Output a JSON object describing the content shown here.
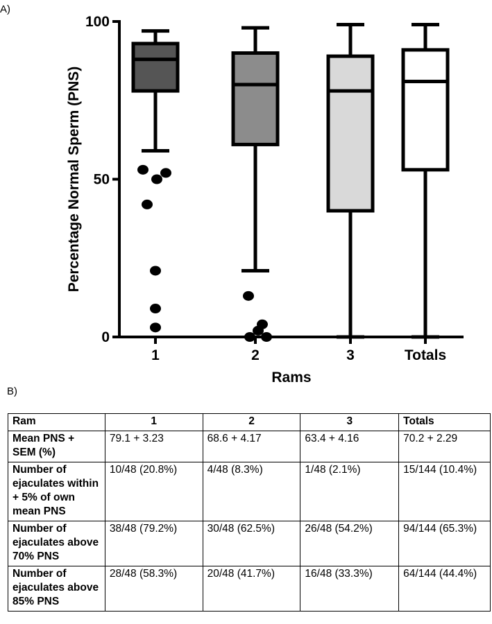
{
  "panel_a_label": "A)",
  "panel_b_label": "B)",
  "chart_data": {
    "type": "box",
    "title": "",
    "xlabel": "Rams",
    "ylabel": "Percentage Normal Sperm (PNS)",
    "ylim": [
      0,
      100
    ],
    "yticks": [
      0,
      50,
      100
    ],
    "categories": [
      "1",
      "2",
      "3",
      "Totals"
    ],
    "boxes": [
      {
        "name": "1",
        "whisker_low": 59,
        "q1": 78,
        "median": 88,
        "q3": 93,
        "whisker_high": 97,
        "fill": "#555555",
        "outliers": [
          53,
          50,
          52,
          42,
          21,
          9,
          3
        ]
      },
      {
        "name": "2",
        "whisker_low": 21,
        "q1": 61,
        "median": 80,
        "q3": 90,
        "whisker_high": 98,
        "fill": "#8c8c8c",
        "outliers": [
          13,
          0,
          2,
          4,
          0
        ]
      },
      {
        "name": "3",
        "whisker_low": 0,
        "q1": 40,
        "median": 78,
        "q3": 89,
        "whisker_high": 99,
        "fill": "#d9d9d9",
        "outliers": []
      },
      {
        "name": "Totals",
        "whisker_low": 0,
        "q1": 53,
        "median": 81,
        "q3": 91,
        "whisker_high": 99,
        "fill": "#ffffff",
        "outliers": []
      }
    ]
  },
  "table": {
    "header": [
      "Ram",
      "1",
      "2",
      "3",
      "Totals"
    ],
    "rows": [
      {
        "label": "Mean PNS + SEM (%)",
        "cells": [
          "79.1 + 3.23",
          "68.6 + 4.17",
          "63.4 + 4.16",
          "70.2 + 2.29"
        ]
      },
      {
        "label": "Number of ejaculates within + 5% of own mean PNS",
        "cells": [
          "10/48 (20.8%)",
          "4/48 (8.3%)",
          "1/48 (2.1%)",
          "15/144 (10.4%)"
        ]
      },
      {
        "label": "Number of ejaculates above 70% PNS",
        "cells": [
          "38/48 (79.2%)",
          "30/48 (62.5%)",
          "26/48 (54.2%)",
          "94/144 (65.3%)"
        ]
      },
      {
        "label": "Number of ejaculates above 85% PNS",
        "cells": [
          "28/48 (58.3%)",
          "20/48 (41.7%)",
          "16/48 (33.3%)",
          "64/144 (44.4%)"
        ]
      }
    ]
  }
}
